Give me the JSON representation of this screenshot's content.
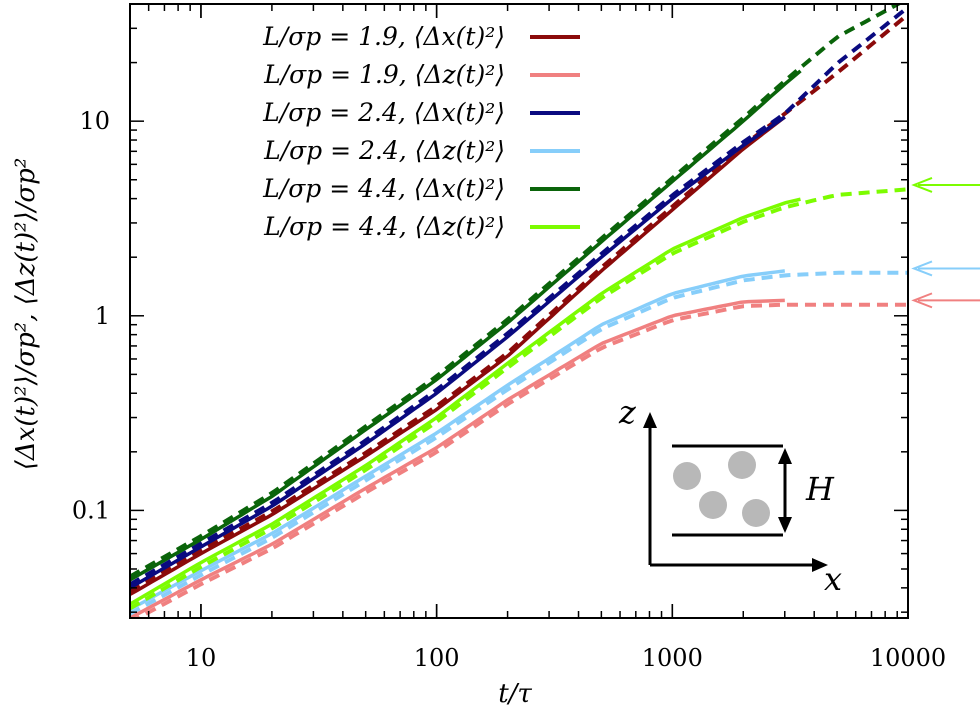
{
  "chart_data": {
    "type": "line",
    "xscale": "log",
    "yscale": "log",
    "xlim": [
      5,
      10000
    ],
    "ylim": [
      0.028,
      40
    ],
    "xlabel": "t/τ",
    "ylabel": "⟨Δx(t)²⟩/σp², ⟨Δz(t)²⟩/σp²",
    "x_ticks": [
      10,
      100,
      1000,
      10000
    ],
    "x_tick_labels": [
      "10",
      "100",
      "1000",
      "10000"
    ],
    "y_ticks": [
      0.1,
      1,
      10
    ],
    "y_tick_labels": [
      "0.1",
      "1",
      "10"
    ],
    "grid": false,
    "legend_position": "top-left",
    "series": [
      {
        "name": "L/σp = 1.9, ⟨Δx(t)²⟩",
        "color": "#8b0a0a",
        "solid_end": 3000,
        "x": [
          5,
          10,
          20,
          50,
          100,
          200,
          500,
          1000,
          2000,
          3000,
          5000,
          10000
        ],
        "y": [
          0.037,
          0.06,
          0.095,
          0.19,
          0.33,
          0.62,
          1.7,
          3.5,
          7.2,
          10.5,
          17,
          34
        ]
      },
      {
        "name": "L/σp = 1.9, ⟨Δz(t)²⟩",
        "color": "#f08080",
        "solid_end": 3000,
        "x": [
          5,
          10,
          20,
          50,
          100,
          200,
          500,
          1000,
          2000,
          3000,
          5000,
          10000
        ],
        "y": [
          0.028,
          0.044,
          0.067,
          0.13,
          0.21,
          0.37,
          0.72,
          1.0,
          1.18,
          1.2,
          1.2,
          1.2
        ]
      },
      {
        "name": "L/σp = 2.4, ⟨Δx(t)²⟩",
        "color": "#0a0a80",
        "solid_end": 3000,
        "x": [
          5,
          10,
          20,
          50,
          100,
          200,
          500,
          1000,
          2000,
          3000,
          5000,
          10000
        ],
        "y": [
          0.04,
          0.065,
          0.105,
          0.22,
          0.4,
          0.78,
          2.0,
          4.0,
          7.5,
          10.5,
          19,
          37
        ]
      },
      {
        "name": "L/σp = 2.4, ⟨Δz(t)²⟩",
        "color": "#87cefa",
        "solid_end": 3000,
        "x": [
          5,
          10,
          20,
          50,
          100,
          200,
          500,
          1000,
          2000,
          3000,
          5000,
          10000
        ],
        "y": [
          0.031,
          0.049,
          0.076,
          0.15,
          0.25,
          0.44,
          0.9,
          1.3,
          1.6,
          1.7,
          1.75,
          1.75
        ]
      },
      {
        "name": "L/σp = 4.4, ⟨Δx(t)²⟩",
        "color": "#0a640a",
        "solid_end": 3500,
        "x": [
          5,
          10,
          20,
          50,
          100,
          200,
          500,
          1000,
          2000,
          3000,
          5000,
          10000
        ],
        "y": [
          0.044,
          0.071,
          0.118,
          0.26,
          0.47,
          0.92,
          2.4,
          4.9,
          10.0,
          15.5,
          26,
          41
        ]
      },
      {
        "name": "L/σp = 4.4, ⟨Δz(t)²⟩",
        "color": "#7cfc00",
        "solid_end": 3500,
        "x": [
          5,
          10,
          20,
          50,
          100,
          200,
          500,
          1000,
          2000,
          3000,
          5000,
          10000
        ],
        "y": [
          0.033,
          0.054,
          0.085,
          0.17,
          0.3,
          0.57,
          1.3,
          2.2,
          3.2,
          3.8,
          4.4,
          4.7
        ]
      }
    ],
    "arrows": [
      {
        "y": 4.7,
        "color": "#7cfc00"
      },
      {
        "y": 1.75,
        "color": "#87cefa"
      },
      {
        "y": 1.2,
        "color": "#f08080"
      }
    ]
  },
  "inset": {
    "z_label": "z",
    "x_label": "x",
    "h_label": "H"
  }
}
